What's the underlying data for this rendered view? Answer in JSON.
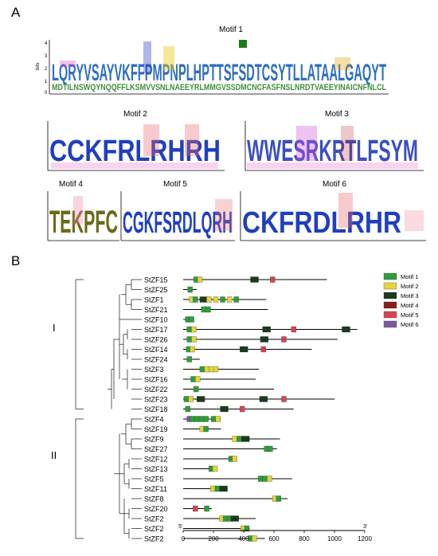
{
  "panels": {
    "a_label": "A",
    "b_label": "B"
  },
  "motifs": {
    "m1": {
      "title": "Motif 1",
      "top_sequence": "LQRYVSAYVKFFPMPNPLHPTTSFSDTCSYTLLATAALGAQYT",
      "lower_text": "MDTILNSWQYNQQFFLKSMVVSNLNAEEYRLMMGVSSDMCNCFASFNSLNRDTVAEEYINAICNFNLCL"
    },
    "m2": {
      "title": "Motif 2",
      "top_sequence": "CCKFRLRHRH"
    },
    "m3": {
      "title": "Motif 3",
      "top_sequence": "WWESRKRTLFSYM"
    },
    "m4": {
      "title": "Motif 4",
      "top_sequence": "TEKPFC"
    },
    "m5": {
      "title": "Motif 5",
      "top_sequence": "CGKFSRDLQRH"
    },
    "m6": {
      "title": "Motif 6",
      "top_sequence": "CKFRDLRHR"
    }
  },
  "legend": [
    {
      "label": "Motif 1",
      "color": "#2f9e3a"
    },
    {
      "label": "Motif 2",
      "color": "#e3d53b"
    },
    {
      "label": "Motif 3",
      "color": "#1b3a1e"
    },
    {
      "label": "Motif 4",
      "color": "#8a1e1e"
    },
    {
      "label": "Motif 5",
      "color": "#d9434e"
    },
    {
      "label": "Motif 6",
      "color": "#7d55a8"
    }
  ],
  "groups": [
    "I",
    "II"
  ],
  "genes": [
    {
      "name": "StZF15",
      "length": 950,
      "motifs": [
        [
          1,
          70
        ],
        [
          2,
          95
        ],
        [
          3,
          445
        ],
        [
          5,
          575
        ]
      ]
    },
    {
      "name": "StZF25",
      "length": 90,
      "motifs": [
        [
          1,
          30
        ]
      ]
    },
    {
      "name": "StZF1",
      "length": 550,
      "motifs": [
        [
          2,
          40
        ],
        [
          1,
          65
        ],
        [
          3,
          110
        ],
        [
          2,
          155
        ],
        [
          2,
          200
        ],
        [
          1,
          245
        ],
        [
          2,
          290
        ],
        [
          1,
          335
        ]
      ]
    },
    {
      "name": "StZF21",
      "length": 560,
      "motifs": [
        [
          1,
          120
        ],
        [
          1,
          150
        ]
      ]
    },
    {
      "name": "StZF10",
      "length": 70,
      "motifs": [
        [
          1,
          15
        ],
        [
          1,
          40
        ]
      ]
    },
    {
      "name": "StZF17",
      "length": 1150,
      "motifs": [
        [
          1,
          25
        ],
        [
          2,
          55
        ],
        [
          3,
          525
        ],
        [
          5,
          715
        ],
        [
          3,
          1050
        ]
      ]
    },
    {
      "name": "StZF26",
      "length": 1020,
      "motifs": [
        [
          1,
          25
        ],
        [
          2,
          55
        ],
        [
          3,
          510
        ],
        [
          5,
          650
        ]
      ]
    },
    {
      "name": "StZF14",
      "length": 850,
      "motifs": [
        [
          1,
          20
        ],
        [
          2,
          45
        ],
        [
          3,
          375
        ],
        [
          5,
          515
        ]
      ]
    },
    {
      "name": "StZF24",
      "length": 110,
      "motifs": [
        [
          1,
          25
        ]
      ]
    },
    {
      "name": "StZF3",
      "length": 500,
      "motifs": [
        [
          1,
          110
        ],
        [
          2,
          140
        ],
        [
          2,
          170
        ],
        [
          2,
          200
        ]
      ]
    },
    {
      "name": "StZF16",
      "length": 480,
      "motifs": [
        [
          1,
          50
        ],
        [
          2,
          80
        ]
      ]
    },
    {
      "name": "StZF22",
      "length": 600,
      "motifs": [
        [
          1,
          70
        ]
      ]
    },
    {
      "name": "StZF23",
      "length": 1000,
      "motifs": [
        [
          1,
          5
        ],
        [
          2,
          35
        ],
        [
          3,
          90
        ],
        [
          3,
          505
        ],
        [
          5,
          650
        ]
      ]
    },
    {
      "name": "StZF18",
      "length": 730,
      "motifs": [
        [
          1,
          15
        ],
        [
          3,
          245
        ],
        [
          5,
          375
        ]
      ]
    },
    {
      "name": "StZF4",
      "length": 250,
      "motifs": [
        [
          6,
          25
        ],
        [
          1,
          45
        ],
        [
          1,
          75
        ],
        [
          1,
          105
        ],
        [
          1,
          135
        ],
        [
          1,
          185
        ],
        [
          2,
          215
        ]
      ]
    },
    {
      "name": "StZF19",
      "length": 250,
      "motifs": [
        [
          2,
          110
        ],
        [
          1,
          135
        ]
      ]
    },
    {
      "name": "StZF9",
      "length": 640,
      "motifs": [
        [
          2,
          325
        ],
        [
          1,
          355
        ],
        [
          3,
          385
        ]
      ]
    },
    {
      "name": "StZF27",
      "length": 620,
      "motifs": [
        [
          1,
          535
        ],
        [
          1,
          560
        ]
      ]
    },
    {
      "name": "StZF12",
      "length": 320,
      "motifs": [
        [
          1,
          300
        ],
        [
          2,
          325
        ]
      ]
    },
    {
      "name": "StZF13",
      "length": 220,
      "motifs": [
        [
          1,
          170
        ],
        [
          2,
          195
        ]
      ]
    },
    {
      "name": "StZF5",
      "length": 720,
      "motifs": [
        [
          1,
          495
        ],
        [
          1,
          525
        ],
        [
          2,
          555
        ]
      ]
    },
    {
      "name": "StZF11",
      "length": 270,
      "motifs": [
        [
          2,
          180
        ],
        [
          1,
          210
        ],
        [
          3,
          240
        ]
      ]
    },
    {
      "name": "StZF8",
      "length": 690,
      "motifs": [
        [
          2,
          590
        ],
        [
          1,
          615
        ]
      ]
    },
    {
      "name": "StZF20",
      "length": 190,
      "motifs": [
        [
          5,
          65
        ],
        [
          1,
          140
        ]
      ]
    },
    {
      "name": "StZF2",
      "length": 480,
      "motifs": [
        [
          2,
          240
        ],
        [
          1,
          265
        ],
        [
          1,
          290
        ],
        [
          3,
          315
        ]
      ]
    },
    {
      "name": "StZF2",
      "length": 440,
      "motifs": [
        [
          2,
          380
        ],
        [
          1,
          405
        ]
      ]
    },
    {
      "name": "StZF2",
      "length": 540,
      "motifs": [
        [
          1,
          430
        ],
        [
          2,
          455
        ]
      ]
    }
  ],
  "axis": {
    "ticks": [
      0,
      200,
      400,
      600,
      800,
      1000,
      1200
    ],
    "five_prime": "5'",
    "three_prime": "3'"
  }
}
